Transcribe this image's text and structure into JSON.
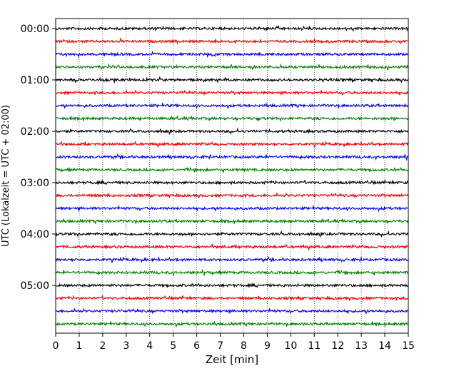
{
  "chart_data": {
    "type": "line",
    "title": "",
    "xlabel": "Zeit  [min]",
    "ylabel": "UTC (Lokalzeit = UTC + 02:00)",
    "xlim": [
      0,
      15
    ],
    "x_ticks": [
      "0",
      "1",
      "2",
      "3",
      "4",
      "5",
      "6",
      "7",
      "8",
      "9",
      "10",
      "11",
      "12",
      "13",
      "14",
      "15"
    ],
    "y_tick_labels": [
      "00:00",
      "01:00",
      "02:00",
      "03:00",
      "04:00",
      "05:00"
    ],
    "grid": "vertical dotted at each minute",
    "trace_colors": [
      "#000000",
      "#ff0000",
      "#0000ff",
      "#008000"
    ],
    "trace_start_times_utc": [
      "00:00",
      "00:15",
      "00:30",
      "00:45",
      "01:00",
      "01:15",
      "01:30",
      "01:45",
      "02:00",
      "02:15",
      "02:30",
      "02:45",
      "03:00",
      "03:15",
      "03:30",
      "03:45",
      "04:00",
      "04:15",
      "04:30",
      "04:45",
      "05:00",
      "05:15",
      "05:30",
      "05:45"
    ],
    "trace_duration_min": 15
  }
}
